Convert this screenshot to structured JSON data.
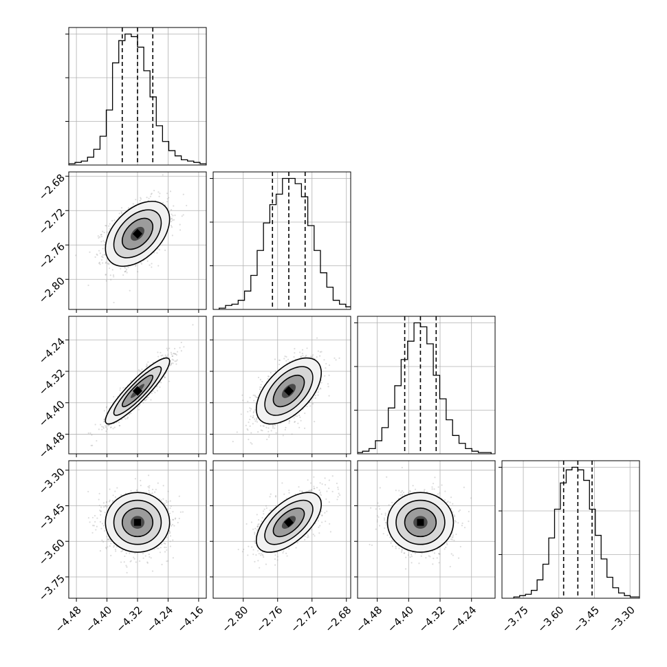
{
  "chart_data": {
    "type": "corner",
    "grid": true,
    "quantile_lines": "dashed",
    "parameters": [
      {
        "range": [
          -4.5,
          -4.14
        ],
        "ticks": [
          {
            "v": -4.48,
            "label": "−4.48"
          },
          {
            "v": -4.4,
            "label": "−4.40"
          },
          {
            "v": -4.32,
            "label": "−4.32"
          },
          {
            "v": -4.24,
            "label": "−4.24"
          },
          {
            "v": -4.16,
            "label": "−4.16"
          }
        ],
        "mean": -4.32,
        "sd": 0.04,
        "quantiles": [
          -4.36,
          -4.32,
          -4.28
        ],
        "hist_counts": [
          1,
          2,
          3,
          6,
          12,
          22,
          42,
          78,
          95,
          100,
          98,
          90,
          72,
          52,
          30,
          18,
          11,
          7,
          4,
          3,
          2,
          1
        ]
      },
      {
        "range": [
          -2.835,
          -2.675
        ],
        "ticks": [
          {
            "v": -2.8,
            "label": "−2.80"
          },
          {
            "v": -2.76,
            "label": "−2.76"
          },
          {
            "v": -2.72,
            "label": "−2.72"
          },
          {
            "v": -2.68,
            "label": "−2.68"
          }
        ],
        "mean": -2.747,
        "sd": 0.018,
        "quantiles": [
          -2.766,
          -2.747,
          -2.728
        ],
        "hist_counts": [
          1,
          3,
          4,
          7,
          14,
          26,
          45,
          66,
          80,
          88,
          100,
          100,
          96,
          86,
          64,
          45,
          28,
          17,
          7,
          4,
          2,
          1
        ]
      },
      {
        "range": [
          -4.53,
          -4.18
        ],
        "ticks": [
          {
            "v": -4.48,
            "label": "−4.48"
          },
          {
            "v": -4.4,
            "label": "−4.40"
          },
          {
            "v": -4.32,
            "label": "−4.32"
          },
          {
            "v": -4.24,
            "label": "−4.24"
          }
        ],
        "mean": -4.37,
        "sd": 0.04,
        "quantiles": [
          -4.41,
          -4.37,
          -4.33
        ],
        "hist_counts": [
          1,
          1,
          2,
          4,
          10,
          20,
          35,
          52,
          72,
          86,
          100,
          97,
          84,
          60,
          42,
          26,
          14,
          8,
          4,
          2,
          1,
          1
        ]
      },
      {
        "range": [
          -3.84,
          -3.26
        ],
        "ticks": [
          {
            "v": -3.75,
            "label": "−3.75"
          },
          {
            "v": -3.6,
            "label": "−3.60"
          },
          {
            "v": -3.45,
            "label": "−3.45"
          },
          {
            "v": -3.3,
            "label": "−3.30"
          }
        ],
        "mean": -3.52,
        "sd": 0.06,
        "quantiles": [
          -3.58,
          -3.52,
          -3.46
        ],
        "hist_counts": [
          1,
          2,
          3,
          6,
          14,
          26,
          46,
          68,
          88,
          98,
          100,
          98,
          90,
          68,
          48,
          30,
          16,
          8,
          4,
          2,
          1,
          1
        ]
      }
    ],
    "correlations": [
      {
        "i": 1,
        "j": 0,
        "rho": 0.45
      },
      {
        "i": 2,
        "j": 0,
        "rho": 0.9
      },
      {
        "i": 2,
        "j": 1,
        "rho": 0.55
      },
      {
        "i": 3,
        "j": 0,
        "rho": 0.0
      },
      {
        "i": 3,
        "j": 1,
        "rho": 0.6
      },
      {
        "i": 3,
        "j": 2,
        "rho": 0.0
      }
    ]
  }
}
